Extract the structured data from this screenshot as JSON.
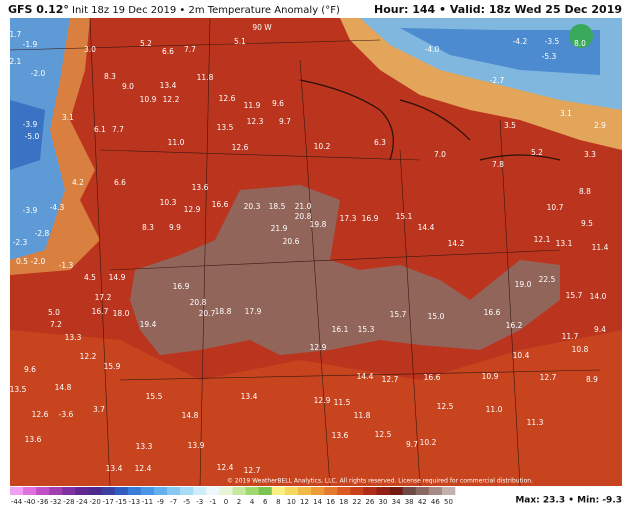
{
  "header": {
    "model": "GFS 0.12°",
    "info": "Init 18z 19 Dec 2019 • 2m Temperature Anomaly (°F)",
    "valid": "Hour: 144 • Valid: 18z Wed 25 Dec 2019"
  },
  "map": {
    "grid_label": "90 W",
    "values": [
      "-1.7",
      "-1.9",
      "3.0",
      "5.2",
      "6.6",
      "7.7",
      "5.1",
      "-2.1",
      "-2.0",
      "8.3",
      "9.0",
      "13.4",
      "11.8",
      "12.6",
      "11.9",
      "9.6",
      "10.9",
      "12.2",
      "13.5",
      "12.3",
      "9.7",
      "-3.9",
      "-5.0",
      "3.1",
      "6.1",
      "7.7",
      "11.0",
      "12.6",
      "10.2",
      "6.3",
      "-4.0",
      "-4.2",
      "-3.5",
      "8.0",
      "-5.3",
      "-2.7",
      "3.5",
      "3.1",
      "2.9",
      "7.0",
      "7.8",
      "5.2",
      "3.3",
      "-3.9",
      "-4.3",
      "4.2",
      "6.6",
      "8.3",
      "9.9",
      "13.6",
      "10.3",
      "12.9",
      "16.6",
      "20.3",
      "18.5",
      "21.0",
      "20.8",
      "21.9",
      "20.6",
      "19.8",
      "17.3",
      "16.9",
      "15.1",
      "14.4",
      "14.2",
      "12.1",
      "13.1",
      "11.4",
      "10.7",
      "8.8",
      "9.5",
      "-2.3",
      "-2.8",
      "0.5",
      "-2.0",
      "-1.3",
      "4.5",
      "14.9",
      "17.2",
      "16.7",
      "18.0",
      "16.9",
      "20.8",
      "20.7",
      "19.4",
      "18.8",
      "17.9",
      "16.1",
      "15.3",
      "15.7",
      "15.0",
      "16.6",
      "16.2",
      "19.0",
      "22.5",
      "15.7",
      "14.0",
      "5.0",
      "7.2",
      "13.3",
      "12.2",
      "15.9",
      "9.6",
      "13.5",
      "14.8",
      "12.6",
      "-3.6",
      "3.7",
      "15.5",
      "14.8",
      "13.4",
      "12.9",
      "11.5",
      "11.8",
      "12.5",
      "11.0",
      "13.6",
      "12.5",
      "9.7",
      "10.2",
      "13.6",
      "13.3",
      "13.9",
      "12.4",
      "12.7",
      "12.4",
      "13.4",
      "11.3",
      "8.9",
      "12.7",
      "10.4",
      "10.8",
      "9.4",
      "11.7",
      "12.9",
      "14.4",
      "12.7",
      "16.6",
      "10.9"
    ]
  },
  "colorbar": {
    "labels": [
      "-44",
      "-40",
      "-36",
      "-32",
      "-28",
      "-24",
      "-20",
      "-17",
      "-15",
      "-13",
      "-11",
      "-9",
      "-7",
      "-5",
      "-3",
      "-1",
      "0",
      "2",
      "4",
      "6",
      "8",
      "10",
      "12",
      "14",
      "16",
      "18",
      "22",
      "26",
      "30",
      "34",
      "38",
      "42",
      "46",
      "50"
    ]
  },
  "footer": {
    "copyright": "© 2019 WeatherBELL Analytics, LLC. All rights reserved. License required for commercial distribution.",
    "stats": "Max: 23.3 • Min: -9.3"
  }
}
